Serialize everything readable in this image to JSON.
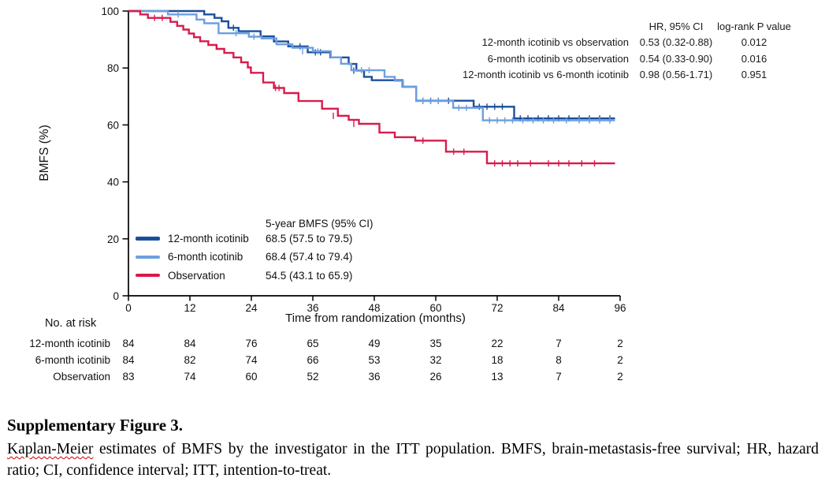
{
  "chart": {
    "y_axis": {
      "label": "BMFS (%)",
      "ticks": [
        0,
        20,
        40,
        60,
        80,
        100
      ]
    },
    "x_axis": {
      "label": "Time from randomization (months)",
      "ticks": [
        0,
        12,
        24,
        36,
        48,
        60,
        72,
        84,
        96
      ]
    },
    "stats_table": {
      "col_headers": {
        "hr": "HR, 95% CI",
        "p": "log-rank P value"
      },
      "rows": [
        {
          "label": "12-month icotinib vs observation",
          "hr": "0.53 (0.32-0.88)",
          "p": "0.012"
        },
        {
          "label": "6-month icotinib vs observation",
          "hr": "0.54 (0.33-0.90)",
          "p": "0.016"
        },
        {
          "label": "12-month icotinib vs 6-month icotinib",
          "hr": "0.98 (0.56-1.71)",
          "p": "0.951"
        }
      ]
    },
    "legend": {
      "header": "5-year BMFS (95% CI)",
      "items": [
        {
          "label": "12-month icotinib",
          "value": "68.5 (57.5 to 79.5)",
          "color": "#1b4f9e"
        },
        {
          "label": "6-month icotinib",
          "value": "68.4 (57.4 to 79.4)",
          "color": "#6d9fdf"
        },
        {
          "label": "Observation",
          "value": "54.5 (43.1 to 65.9)",
          "color": "#d81b4c"
        }
      ]
    },
    "risk_table": {
      "header": "No. at risk",
      "rows": [
        {
          "label": "12-month icotinib",
          "values": [
            "84",
            "84",
            "76",
            "65",
            "49",
            "35",
            "22",
            "7",
            "2"
          ]
        },
        {
          "label": "6-month icotinib",
          "values": [
            "84",
            "82",
            "74",
            "66",
            "53",
            "32",
            "18",
            "8",
            "2"
          ]
        },
        {
          "label": "Observation",
          "values": [
            "83",
            "74",
            "60",
            "52",
            "36",
            "26",
            "13",
            "7",
            "2"
          ]
        }
      ]
    }
  },
  "chart_data": {
    "type": "line",
    "subtype": "kaplan-meier-step",
    "title": "",
    "xlabel": "Time from randomization (months)",
    "ylabel": "BMFS (%)",
    "xlim": [
      0,
      96
    ],
    "ylim": [
      0,
      100
    ],
    "x_ticks": [
      0,
      12,
      24,
      36,
      48,
      60,
      72,
      84,
      96
    ],
    "y_ticks": [
      0,
      20,
      40,
      60,
      80,
      100
    ],
    "grid": false,
    "legend_position": "lower-left-inside",
    "series": [
      {
        "name": "12-month icotinib",
        "color": "#1b4f9e",
        "five_year_bmfs": "68.5 (57.5 to 79.5)",
        "steps": [
          [
            0,
            100
          ],
          [
            14.8,
            98.8
          ],
          [
            16.8,
            97.6
          ],
          [
            18.2,
            96.4
          ],
          [
            19.5,
            94.1
          ],
          [
            21.5,
            92.9
          ],
          [
            25.8,
            91.1
          ],
          [
            28.4,
            89.3
          ],
          [
            31.2,
            87.6
          ],
          [
            35,
            85.5
          ],
          [
            39.4,
            83.7
          ],
          [
            43,
            81.4
          ],
          [
            44.5,
            79.1
          ],
          [
            46,
            76.9
          ],
          [
            47.5,
            75.7
          ],
          [
            53.5,
            73.4
          ],
          [
            56.2,
            68.5
          ],
          [
            67.4,
            66.4
          ],
          [
            75.3,
            62.3
          ],
          [
            95,
            62.3
          ]
        ],
        "censor_marks": [
          [
            20.5,
            94.1
          ],
          [
            33.5,
            87.6
          ],
          [
            36.5,
            85.5
          ],
          [
            37.5,
            85.5
          ],
          [
            44,
            79.1
          ],
          [
            57.5,
            68.5
          ],
          [
            59,
            68.5
          ],
          [
            60.5,
            68.5
          ],
          [
            62.5,
            68.5
          ],
          [
            68.5,
            66.4
          ],
          [
            70,
            66.4
          ],
          [
            71.5,
            66.4
          ],
          [
            73,
            66.4
          ],
          [
            76.5,
            62.3
          ],
          [
            78,
            62.3
          ],
          [
            80,
            62.3
          ],
          [
            82,
            62.3
          ],
          [
            84,
            62.3
          ],
          [
            86,
            62.3
          ],
          [
            88,
            62.3
          ],
          [
            90,
            62.3
          ],
          [
            92,
            62.3
          ],
          [
            94,
            62.3
          ]
        ]
      },
      {
        "name": "6-month icotinib",
        "color": "#6d9fdf",
        "five_year_bmfs": "68.4 (57.4 to 79.4)",
        "steps": [
          [
            0,
            100
          ],
          [
            7.7,
            98.8
          ],
          [
            13.3,
            97.0
          ],
          [
            14.8,
            95.7
          ],
          [
            17.6,
            92.2
          ],
          [
            23.5,
            91.0
          ],
          [
            26,
            90.4
          ],
          [
            28.9,
            88.3
          ],
          [
            32,
            87.1
          ],
          [
            36,
            85.9
          ],
          [
            39.5,
            83.7
          ],
          [
            41.5,
            81.5
          ],
          [
            43.5,
            79.2
          ],
          [
            50,
            76.9
          ],
          [
            52,
            75.5
          ],
          [
            53.6,
            73.4
          ],
          [
            56.2,
            68.4
          ],
          [
            63.4,
            66.0
          ],
          [
            69.2,
            61.6
          ],
          [
            95,
            61.6
          ]
        ],
        "censor_marks": [
          [
            9.7,
            98.8
          ],
          [
            21,
            92.2
          ],
          [
            24.5,
            91.0
          ],
          [
            34,
            85.9
          ],
          [
            37,
            85.9
          ],
          [
            45.5,
            79.2
          ],
          [
            47,
            79.2
          ],
          [
            57.5,
            68.4
          ],
          [
            59,
            68.4
          ],
          [
            60.5,
            68.4
          ],
          [
            64.5,
            66.0
          ],
          [
            66,
            66.0
          ],
          [
            70.5,
            61.6
          ],
          [
            72,
            61.6
          ],
          [
            73.5,
            61.6
          ],
          [
            75,
            61.6
          ],
          [
            77,
            61.6
          ],
          [
            79,
            61.6
          ],
          [
            81,
            61.6
          ],
          [
            83,
            61.6
          ],
          [
            85.5,
            61.6
          ],
          [
            88,
            61.6
          ],
          [
            90,
            61.6
          ],
          [
            92,
            61.6
          ],
          [
            94,
            61.6
          ]
        ]
      },
      {
        "name": "Observation",
        "color": "#d81b4c",
        "five_year_bmfs": "54.5 (43.1 to 65.9)",
        "steps": [
          [
            0,
            100
          ],
          [
            2.3,
            98.8
          ],
          [
            3.8,
            97.6
          ],
          [
            8.2,
            96.2
          ],
          [
            9.5,
            94.8
          ],
          [
            10.7,
            93.5
          ],
          [
            11.8,
            92.1
          ],
          [
            12.8,
            90.8
          ],
          [
            14,
            89.4
          ],
          [
            15.6,
            88.1
          ],
          [
            17.2,
            86.7
          ],
          [
            18.7,
            85.3
          ],
          [
            20.5,
            83.7
          ],
          [
            22,
            82.0
          ],
          [
            23.3,
            80.2
          ],
          [
            23.9,
            78.3
          ],
          [
            26.3,
            74.9
          ],
          [
            28.4,
            73.0
          ],
          [
            30.4,
            71.2
          ],
          [
            33.2,
            68.4
          ],
          [
            37.8,
            65.7
          ],
          [
            40.9,
            63.2
          ],
          [
            43,
            61.8
          ],
          [
            45,
            60.4
          ],
          [
            49,
            57.3
          ],
          [
            52,
            55.7
          ],
          [
            56,
            54.5
          ],
          [
            62,
            50.6
          ],
          [
            70,
            46.5
          ],
          [
            95,
            46.5
          ]
        ],
        "censor_marks": [
          [
            5.1,
            97.6
          ],
          [
            6.6,
            97.6
          ],
          [
            28.7,
            73.0
          ],
          [
            29.4,
            73.0
          ],
          [
            40,
            63.2
          ],
          [
            44,
            60.4
          ],
          [
            57.5,
            54.5
          ],
          [
            63.5,
            50.6
          ],
          [
            65.5,
            50.6
          ],
          [
            71.5,
            46.5
          ],
          [
            73,
            46.5
          ],
          [
            74.5,
            46.5
          ],
          [
            76,
            46.5
          ],
          [
            78.5,
            46.5
          ],
          [
            82,
            46.5
          ],
          [
            84,
            46.5
          ],
          [
            86,
            46.5
          ],
          [
            88.5,
            46.5
          ],
          [
            91,
            46.5
          ]
        ]
      }
    ],
    "annotations": {
      "hazard_ratios": [
        {
          "comparison": "12-month icotinib vs observation",
          "hr_95ci": "0.53 (0.32-0.88)",
          "log_rank_p": "0.012"
        },
        {
          "comparison": "6-month icotinib vs observation",
          "hr_95ci": "0.54 (0.33-0.90)",
          "log_rank_p": "0.016"
        },
        {
          "comparison": "12-month icotinib vs 6-month icotinib",
          "hr_95ci": "0.98 (0.56-1.71)",
          "log_rank_p": "0.951"
        }
      ],
      "number_at_risk": {
        "12-month icotinib": [
          84,
          84,
          76,
          65,
          49,
          35,
          22,
          7,
          2
        ],
        "6-month icotinib": [
          84,
          82,
          74,
          66,
          53,
          32,
          18,
          8,
          2
        ],
        "Observation": [
          83,
          74,
          60,
          52,
          36,
          26,
          13,
          7,
          2
        ]
      }
    }
  },
  "caption": {
    "heading": "Supplementary Figure 3.",
    "misspelled_word": "Kaplan-Meier",
    "body_rest": " estimates of BMFS by the investigator in the ITT population. BMFS, brain-metastasis-free survival; HR, hazard ratio; CI, confidence interval; ITT, intention-to-treat."
  }
}
